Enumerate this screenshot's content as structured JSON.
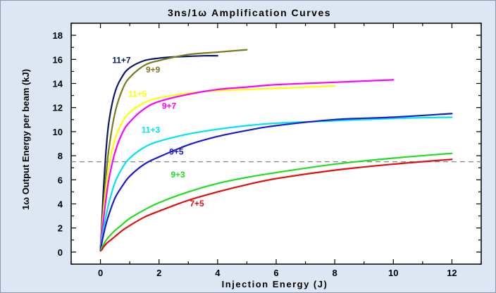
{
  "chart_data": {
    "type": "line",
    "title": "3ns/1ω Amplification Curves",
    "xlabel": "Injection Energy (J)",
    "ylabel": "1ω Output Energy per beam (kJ)",
    "xlim": [
      -1,
      13
    ],
    "ylim": [
      -1,
      19
    ],
    "x_ticks": [
      0,
      2,
      4,
      6,
      8,
      10,
      12
    ],
    "y_ticks": [
      0,
      2,
      4,
      6,
      8,
      10,
      12,
      14,
      16,
      18
    ],
    "grid": false,
    "reference_line": {
      "y": 7.5,
      "style": "dashed",
      "color": "#888888"
    },
    "series": [
      {
        "name": "11+7",
        "color": "#0a1a6a",
        "x": [
          0,
          0.05,
          0.1,
          0.2,
          0.3,
          0.5,
          0.75,
          1.0,
          1.5,
          2.0,
          2.5,
          3.0,
          3.5,
          4.0
        ],
        "y": [
          0.2,
          2.5,
          5.0,
          8.7,
          11.0,
          13.3,
          14.6,
          15.3,
          15.9,
          16.1,
          16.2,
          16.25,
          16.3,
          16.3
        ]
      },
      {
        "name": "9+9",
        "color": "#7a7a1e",
        "x": [
          0,
          0.05,
          0.1,
          0.2,
          0.3,
          0.5,
          0.75,
          1.0,
          1.5,
          2.0,
          3.0,
          4.0,
          5.0
        ],
        "y": [
          0.2,
          1.8,
          3.6,
          6.6,
          8.8,
          11.6,
          13.5,
          14.5,
          15.5,
          15.9,
          16.4,
          16.6,
          16.8
        ]
      },
      {
        "name": "11+5",
        "color": "#ffff00",
        "x": [
          0,
          0.05,
          0.1,
          0.2,
          0.3,
          0.5,
          0.75,
          1.0,
          1.5,
          2.0,
          3.0,
          4.0,
          5.0,
          6.0,
          7.0,
          8.0
        ],
        "y": [
          0.2,
          1.7,
          3.2,
          5.6,
          7.3,
          9.4,
          10.8,
          11.6,
          12.4,
          12.8,
          13.2,
          13.4,
          13.5,
          13.6,
          13.7,
          13.8
        ]
      },
      {
        "name": "9+7",
        "color": "#ff00ff",
        "x": [
          0,
          0.05,
          0.1,
          0.2,
          0.3,
          0.5,
          0.75,
          1.0,
          1.5,
          2.0,
          3.0,
          4.0,
          5.0,
          6.0,
          8.0,
          10.0
        ],
        "y": [
          0.2,
          1.4,
          2.6,
          4.6,
          6.2,
          8.3,
          9.9,
          10.8,
          11.9,
          12.5,
          13.1,
          13.5,
          13.7,
          13.9,
          14.1,
          14.3
        ]
      },
      {
        "name": "11+3",
        "color": "#00e5ee",
        "x": [
          0,
          0.05,
          0.1,
          0.2,
          0.3,
          0.5,
          0.75,
          1.0,
          1.5,
          2.0,
          3.0,
          4.0,
          5.0,
          6.0,
          8.0,
          10.0,
          12.0
        ],
        "y": [
          0.2,
          1.0,
          1.8,
          3.1,
          4.2,
          5.8,
          7.0,
          7.8,
          8.7,
          9.2,
          9.8,
          10.2,
          10.5,
          10.7,
          10.9,
          11.1,
          11.2
        ]
      },
      {
        "name": "9+5",
        "color": "#1a1ad0",
        "x": [
          0,
          0.05,
          0.1,
          0.2,
          0.3,
          0.5,
          0.75,
          1.0,
          1.5,
          2.0,
          3.0,
          4.0,
          5.0,
          6.0,
          8.0,
          10.0,
          12.0
        ],
        "y": [
          0.2,
          0.8,
          1.4,
          2.4,
          3.2,
          4.5,
          5.5,
          6.3,
          7.3,
          7.9,
          8.9,
          9.6,
          10.1,
          10.5,
          11.0,
          11.2,
          11.5
        ]
      },
      {
        "name": "9+3",
        "color": "#22dd22",
        "x": [
          0,
          0.05,
          0.1,
          0.2,
          0.3,
          0.5,
          0.75,
          1.0,
          1.5,
          2.0,
          3.0,
          4.0,
          5.0,
          6.0,
          8.0,
          10.0,
          12.0
        ],
        "y": [
          0.1,
          0.4,
          0.6,
          1.0,
          1.3,
          1.8,
          2.3,
          2.8,
          3.5,
          4.1,
          5.0,
          5.7,
          6.2,
          6.6,
          7.3,
          7.8,
          8.2
        ]
      },
      {
        "name": "7+5",
        "color": "#e01010",
        "x": [
          0,
          0.05,
          0.1,
          0.2,
          0.3,
          0.5,
          0.75,
          1.0,
          1.5,
          2.0,
          3.0,
          4.0,
          5.0,
          6.0,
          8.0,
          10.0,
          12.0
        ],
        "y": [
          0.1,
          0.2,
          0.4,
          0.7,
          0.9,
          1.3,
          1.8,
          2.2,
          2.9,
          3.4,
          4.3,
          5.0,
          5.6,
          6.1,
          6.8,
          7.3,
          7.7
        ]
      }
    ],
    "annotations": [
      {
        "text": "11+7",
        "x": 0.4,
        "y": 15.7,
        "color": "#0a1a6a"
      },
      {
        "text": "9+9",
        "x": 1.55,
        "y": 14.9,
        "color": "#7a7a1e"
      },
      {
        "text": "11+5",
        "x": 0.95,
        "y": 12.9,
        "color": "#ffff00"
      },
      {
        "text": "9+7",
        "x": 2.1,
        "y": 11.9,
        "color": "#ff00ff"
      },
      {
        "text": "11+3",
        "x": 1.4,
        "y": 9.9,
        "color": "#00e5ee"
      },
      {
        "text": "9+5",
        "x": 2.35,
        "y": 8.1,
        "color": "#1a1ad0"
      },
      {
        "text": "9+3",
        "x": 2.4,
        "y": 6.2,
        "color": "#22dd22"
      },
      {
        "text": "7+5",
        "x": 3.05,
        "y": 3.8,
        "color": "#e01010"
      }
    ]
  }
}
